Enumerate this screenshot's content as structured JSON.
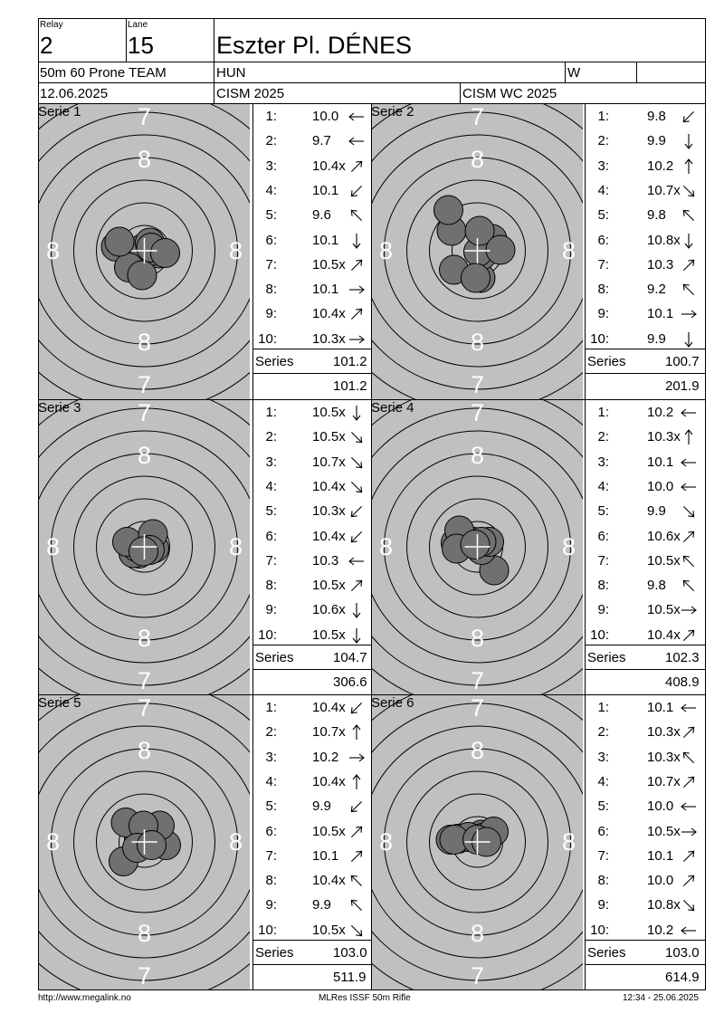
{
  "header": {
    "relay_label": "Relay",
    "relay": "2",
    "lane_label": "Lane",
    "lane": "15",
    "athlete": "Eszter Pl. DÉNES",
    "event": "50m 60 Prone TEAM",
    "nation": "HUN",
    "gender": "W",
    "date": "12.06.2025",
    "competition": "CISM 2025",
    "match": "CISM WC 2025"
  },
  "target_labels": {
    "ring7": "7",
    "ring8": "8"
  },
  "labels": {
    "series": "Series"
  },
  "series": [
    {
      "title": "Serie 1",
      "total": "101.2",
      "cumulative": "101.2",
      "shots": [
        {
          "n": "1:",
          "v": "10.0",
          "dir": "W",
          "x": -0.02,
          "y": 0.06
        },
        {
          "n": "2:",
          "v": "9.7",
          "dir": "W",
          "x": -0.63,
          "y": 0.09
        },
        {
          "n": "3:",
          "v": "10.4x",
          "dir": "NE",
          "x": 0.12,
          "y": 0.18
        },
        {
          "n": "4:",
          "v": "10.1",
          "dir": "SW",
          "x": -0.34,
          "y": -0.37
        },
        {
          "n": "5:",
          "v": "9.6",
          "dir": "NW",
          "x": -0.55,
          "y": 0.2
        },
        {
          "n": "6:",
          "v": "10.1",
          "dir": "S",
          "x": 0.32,
          "y": -0.06
        },
        {
          "n": "7:",
          "v": "10.5x",
          "dir": "NE",
          "x": 0.21,
          "y": 0.0
        },
        {
          "n": "8:",
          "v": "10.1",
          "dir": "E",
          "x": -0.05,
          "y": -0.54
        },
        {
          "n": "9:",
          "v": "10.4x",
          "dir": "NE",
          "x": 0.15,
          "y": 0.07
        },
        {
          "n": "10:",
          "v": "10.3x",
          "dir": "E",
          "x": 0.46,
          "y": -0.05
        }
      ]
    },
    {
      "title": "Serie 2",
      "total": "100.7",
      "cumulative": "201.9",
      "shots": [
        {
          "n": "1:",
          "v": "9.8",
          "dir": "SW",
          "x": -0.52,
          "y": -0.42
        },
        {
          "n": "2:",
          "v": "9.9",
          "dir": "S",
          "x": 0.07,
          "y": -0.6
        },
        {
          "n": "3:",
          "v": "10.2",
          "dir": "N",
          "x": 0.33,
          "y": 0.26
        },
        {
          "n": "4:",
          "v": "10.7x",
          "dir": "SE",
          "x": 0.1,
          "y": -0.1
        },
        {
          "n": "5:",
          "v": "9.8",
          "dir": "NW",
          "x": -0.57,
          "y": 0.44
        },
        {
          "n": "6:",
          "v": "10.8x",
          "dir": "S",
          "x": 0.02,
          "y": -0.02
        },
        {
          "n": "7:",
          "v": "10.3",
          "dir": "NE",
          "x": 0.05,
          "y": 0.44
        },
        {
          "n": "8:",
          "v": "9.2",
          "dir": "NW",
          "x": -0.64,
          "y": 0.9
        },
        {
          "n": "9:",
          "v": "10.1",
          "dir": "E",
          "x": 0.51,
          "y": 0.02
        },
        {
          "n": "10:",
          "v": "9.9",
          "dir": "S",
          "x": -0.04,
          "y": -0.6
        }
      ]
    },
    {
      "title": "Serie 3",
      "total": "104.7",
      "cumulative": "306.6",
      "shots": [
        {
          "n": "1:",
          "v": "10.5x",
          "dir": "S",
          "x": -0.12,
          "y": -0.15
        },
        {
          "n": "2:",
          "v": "10.5x",
          "dir": "SE",
          "x": -0.01,
          "y": 0.02
        },
        {
          "n": "3:",
          "v": "10.7x",
          "dir": "SE",
          "x": 0.04,
          "y": -0.06
        },
        {
          "n": "4:",
          "v": "10.4x",
          "dir": "SE",
          "x": 0.22,
          "y": -0.03
        },
        {
          "n": "5:",
          "v": "10.3x",
          "dir": "SW",
          "x": -0.24,
          "y": -0.14
        },
        {
          "n": "6:",
          "v": "10.4x",
          "dir": "SW",
          "x": -0.18,
          "y": 0.0
        },
        {
          "n": "7:",
          "v": "10.3",
          "dir": "W",
          "x": -0.38,
          "y": 0.11
        },
        {
          "n": "8:",
          "v": "10.5x",
          "dir": "NE",
          "x": 0.19,
          "y": 0.28
        },
        {
          "n": "9:",
          "v": "10.6x",
          "dir": "S",
          "x": 0.12,
          "y": -0.07
        },
        {
          "n": "10:",
          "v": "10.5x",
          "dir": "S",
          "x": -0.02,
          "y": -0.1
        }
      ]
    },
    {
      "title": "Serie 4",
      "total": "102.3",
      "cumulative": "408.9",
      "shots": [
        {
          "n": "1:",
          "v": "10.2",
          "dir": "W",
          "x": -0.39,
          "y": 0.09
        },
        {
          "n": "2:",
          "v": "10.3x",
          "dir": "N",
          "x": -0.09,
          "y": 0.11
        },
        {
          "n": "3:",
          "v": "10.1",
          "dir": "W",
          "x": -0.48,
          "y": 0.09
        },
        {
          "n": "4:",
          "v": "10.0",
          "dir": "W",
          "x": -0.4,
          "y": 0.36
        },
        {
          "n": "5:",
          "v": "9.9",
          "dir": "SE",
          "x": 0.37,
          "y": -0.52
        },
        {
          "n": "6:",
          "v": "10.6x",
          "dir": "NE",
          "x": 0.09,
          "y": -0.07
        },
        {
          "n": "7:",
          "v": "10.5x",
          "dir": "NW",
          "x": 0.26,
          "y": 0.11
        },
        {
          "n": "8:",
          "v": "9.8",
          "dir": "NW",
          "x": -0.46,
          "y": -0.04
        },
        {
          "n": "9:",
          "v": "10.5x",
          "dir": "E",
          "x": 0.09,
          "y": 0.11
        },
        {
          "n": "10:",
          "v": "10.4x",
          "dir": "NE",
          "x": -0.05,
          "y": 0.05
        }
      ]
    },
    {
      "title": "Serie 5",
      "total": "103.0",
      "cumulative": "511.9",
      "shots": [
        {
          "n": "1:",
          "v": "10.4x",
          "dir": "SW",
          "x": -0.12,
          "y": 0.06
        },
        {
          "n": "2:",
          "v": "10.7x",
          "dir": "N",
          "x": 0.0,
          "y": 0.0
        },
        {
          "n": "3:",
          "v": "10.2",
          "dir": "E",
          "x": 0.48,
          "y": -0.07
        },
        {
          "n": "4:",
          "v": "10.4x",
          "dir": "N",
          "x": 0.34,
          "y": 0.36
        },
        {
          "n": "5:",
          "v": "9.9",
          "dir": "SW",
          "x": -0.46,
          "y": -0.43
        },
        {
          "n": "6:",
          "v": "10.5x",
          "dir": "NE",
          "x": -0.1,
          "y": -0.07
        },
        {
          "n": "7:",
          "v": "10.1",
          "dir": "NE",
          "x": -0.41,
          "y": 0.43
        },
        {
          "n": "8:",
          "v": "10.4x",
          "dir": "NW",
          "x": -0.02,
          "y": 0.36
        },
        {
          "n": "9:",
          "v": "9.9",
          "dir": "NW",
          "x": -0.16,
          "y": -0.13
        },
        {
          "n": "10:",
          "v": "10.5x",
          "dir": "SE",
          "x": 0.16,
          "y": -0.07
        }
      ]
    },
    {
      "title": "Serie 6",
      "total": "103.0",
      "cumulative": "614.9",
      "shots": [
        {
          "n": "1:",
          "v": "10.1",
          "dir": "W",
          "x": -0.43,
          "y": 0.07
        },
        {
          "n": "2:",
          "v": "10.3x",
          "dir": "NE",
          "x": 0.09,
          "y": 0.16
        },
        {
          "n": "3:",
          "v": "10.3x",
          "dir": "NW",
          "x": 0.08,
          "y": 0.04
        },
        {
          "n": "4:",
          "v": "10.7x",
          "dir": "NE",
          "x": 0.12,
          "y": 0.09
        },
        {
          "n": "5:",
          "v": "10.0",
          "dir": "W",
          "x": -0.59,
          "y": 0.05
        },
        {
          "n": "6:",
          "v": "10.5x",
          "dir": "E",
          "x": -0.2,
          "y": 0.11
        },
        {
          "n": "7:",
          "v": "10.1",
          "dir": "NE",
          "x": 0.36,
          "y": 0.23
        },
        {
          "n": "8:",
          "v": "10.0",
          "dir": "NE",
          "x": -0.51,
          "y": 0.05
        },
        {
          "n": "9:",
          "v": "10.8x",
          "dir": "SE",
          "x": 0.0,
          "y": 0.05
        },
        {
          "n": "10:",
          "v": "10.2",
          "dir": "W",
          "x": 0.2,
          "y": 0.0
        }
      ]
    }
  ],
  "footer": {
    "website": "http://www.megalink.no",
    "system": "MLRes ISSF 50m Rifle",
    "timestamp": "12:34 - 25.06.2025"
  }
}
